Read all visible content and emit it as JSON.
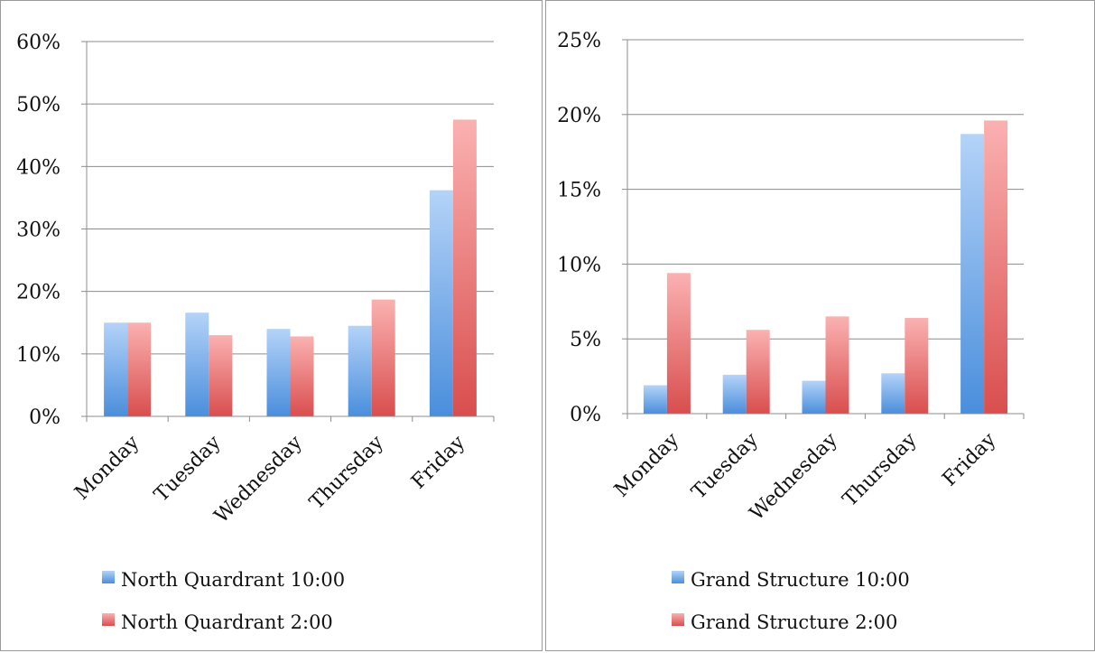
{
  "colors": {
    "series1_top": "#b4d3f8",
    "series1_bottom": "#4a8edc",
    "series2_top": "#fbb1b1",
    "series2_bottom": "#d94e4e",
    "gridline": "#8c8c8c",
    "axis": "#8c8c8c"
  },
  "chart_data": [
    {
      "type": "bar",
      "categories": [
        "Monday",
        "Tuesday",
        "Wednesday",
        "Thursday",
        "Friday"
      ],
      "series": [
        {
          "name": "North Quardrant 10:00",
          "values": [
            15,
            16.6,
            14,
            14.5,
            36.2
          ]
        },
        {
          "name": "North Quardrant 2:00",
          "values": [
            15,
            13,
            12.8,
            18.7,
            47.5
          ]
        }
      ],
      "yticks": [
        "0%",
        "10%",
        "20%",
        "30%",
        "40%",
        "50%",
        "60%"
      ],
      "ylim": [
        0,
        60
      ],
      "unit": "%",
      "grid": true,
      "legend": "bottom-left"
    },
    {
      "type": "bar",
      "categories": [
        "Monday",
        "Tuesday",
        "Wednesday",
        "Thursday",
        "Friday"
      ],
      "series": [
        {
          "name": "Grand Structure 10:00",
          "values": [
            1.9,
            2.6,
            2.2,
            2.7,
            18.7
          ]
        },
        {
          "name": "Grand Structure 2:00",
          "values": [
            9.4,
            5.6,
            6.5,
            6.4,
            19.6
          ]
        }
      ],
      "yticks": [
        "0%",
        "5%",
        "10%",
        "15%",
        "20%",
        "25%"
      ],
      "ylim": [
        0,
        25
      ],
      "unit": "%",
      "grid": true,
      "legend": "bottom-left"
    }
  ]
}
